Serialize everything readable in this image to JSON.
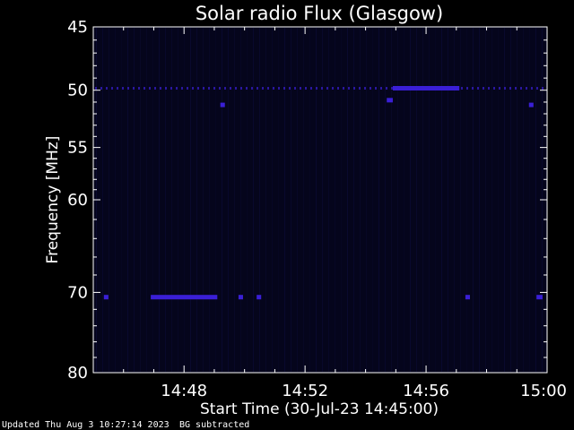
{
  "chart_data": {
    "type": "heatmap",
    "title": "Solar radio Flux (Glasgow)",
    "xlabel": "Start Time (30-Jul-23 14:45:00)",
    "ylabel": "Frequency [MHz]",
    "x_unit": "minutes after 14:45:00",
    "xlim": [
      0,
      15
    ],
    "x_ticks": [
      {
        "value": 3,
        "label": "14:48"
      },
      {
        "value": 7,
        "label": "14:52"
      },
      {
        "value": 11,
        "label": "14:56"
      },
      {
        "value": 15,
        "label": "15:00"
      }
    ],
    "y_scale": "log",
    "y_reversed": true,
    "ylim": [
      45,
      80
    ],
    "y_ticks": [
      {
        "value": 45,
        "label": "45"
      },
      {
        "value": 50,
        "label": "50"
      },
      {
        "value": 55,
        "label": "55"
      },
      {
        "value": 60,
        "label": "60"
      },
      {
        "value": 70,
        "label": "70"
      },
      {
        "value": 80,
        "label": "80"
      }
    ],
    "colors": {
      "background": "#000000",
      "plot_background": "#05051c",
      "foreground": "#ffffff",
      "emission": "#3a1fd6",
      "streaks": "#0c0c3a"
    },
    "emission_bands": [
      {
        "freq_mhz": 49.8,
        "segments": [
          [
            0,
            15
          ]
        ],
        "intensity": "low"
      },
      {
        "freq_mhz": 49.8,
        "segments": [
          [
            9.9,
            12.1
          ]
        ],
        "intensity": "high"
      },
      {
        "freq_mhz": 50.8,
        "segments": [
          [
            9.7,
            9.9
          ]
        ],
        "intensity": "high"
      },
      {
        "freq_mhz": 51.2,
        "segments": [
          [
            4.2,
            4.35
          ],
          [
            14.4,
            14.55
          ]
        ],
        "intensity": "high"
      },
      {
        "freq_mhz": 70.5,
        "segments": [
          [
            0.35,
            0.5
          ],
          [
            1.9,
            4.1
          ],
          [
            4.8,
            4.95
          ],
          [
            5.4,
            5.55
          ],
          [
            12.3,
            12.45
          ],
          [
            14.65,
            14.85
          ]
        ],
        "intensity": "high"
      }
    ]
  },
  "footer": {
    "updated": "Updated Thu Aug  3 10:27:14 2023",
    "note": "BG subtracted"
  }
}
